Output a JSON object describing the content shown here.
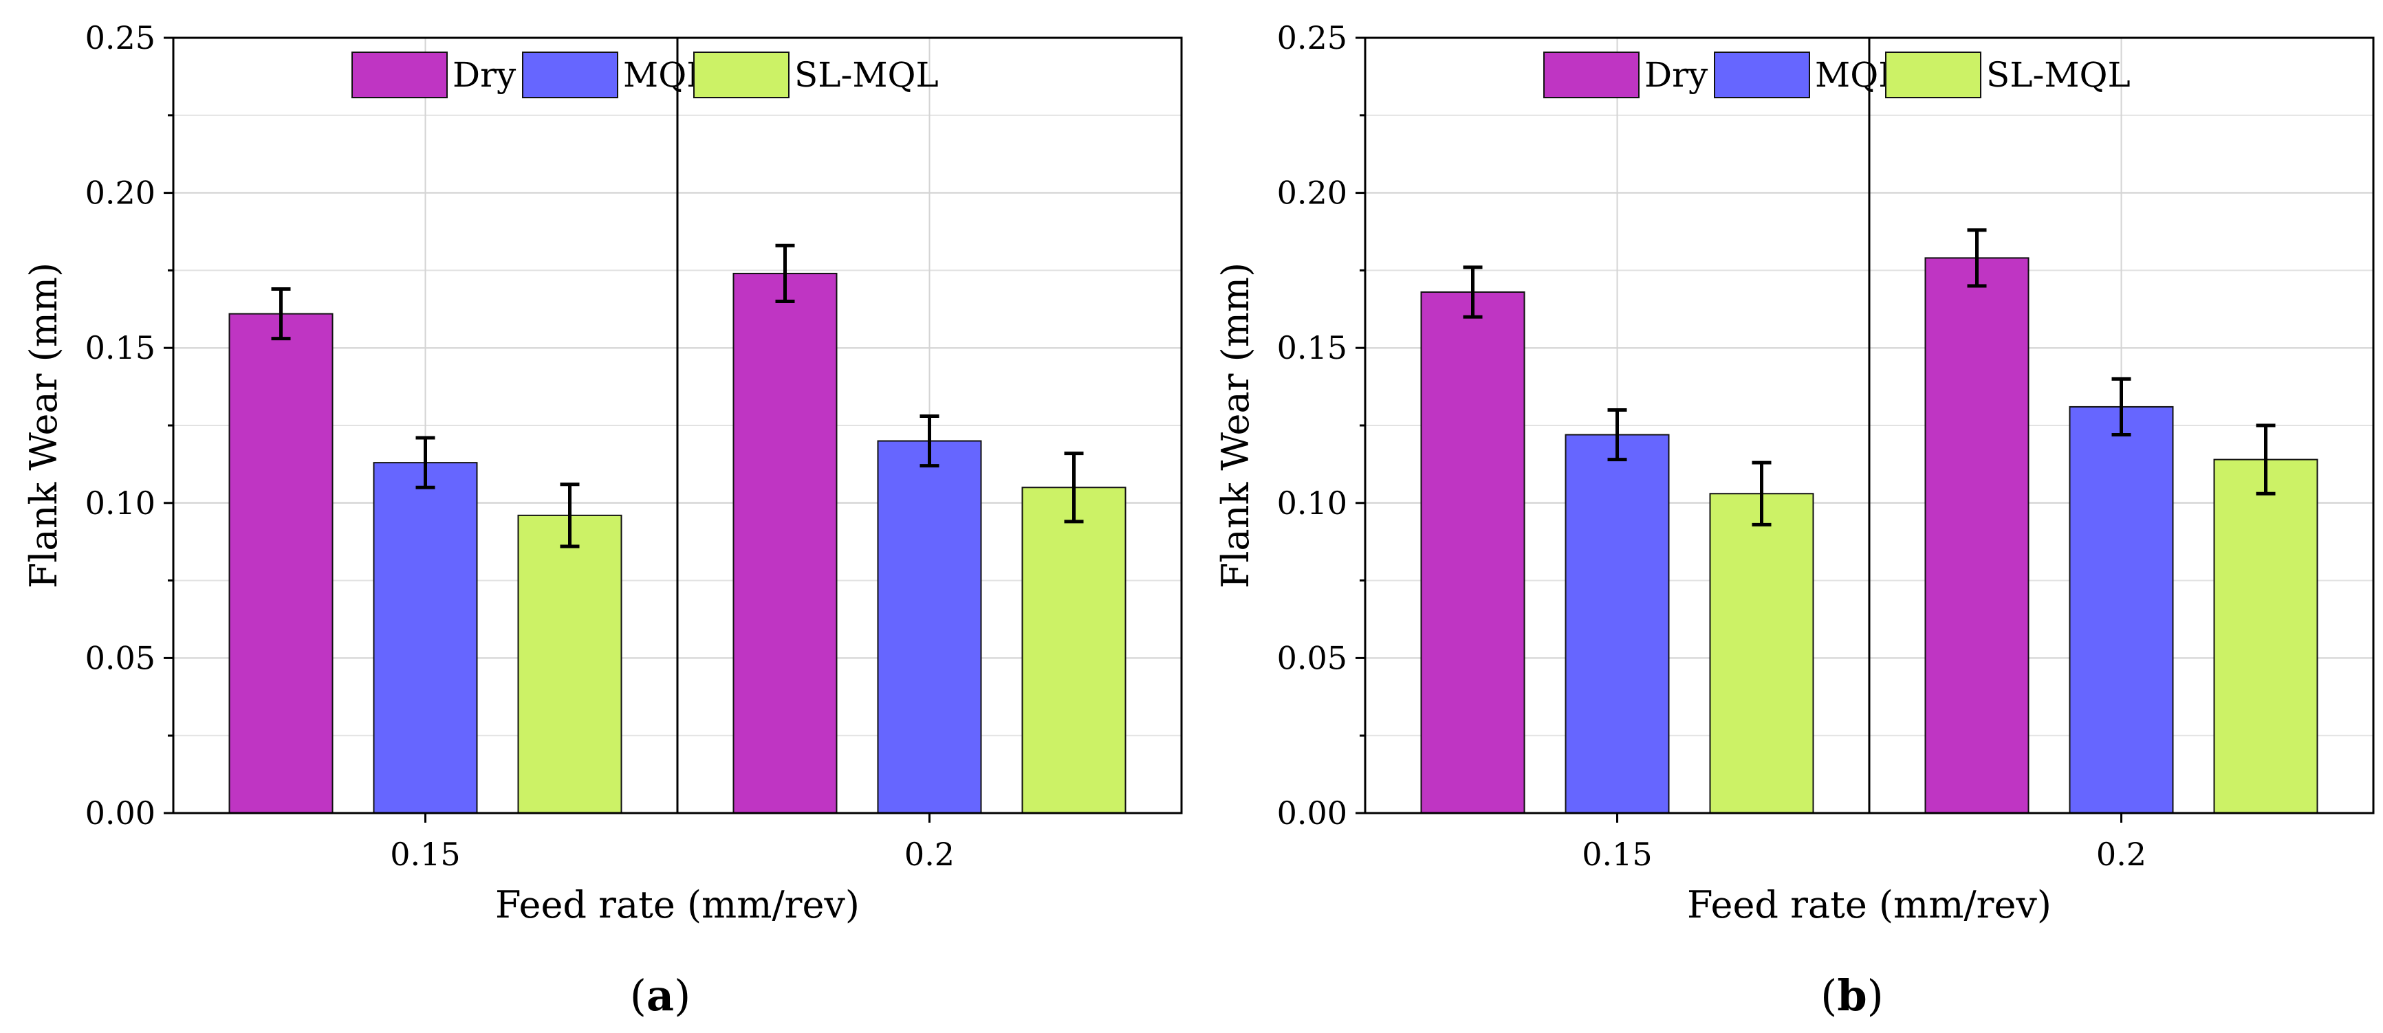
{
  "figure": {
    "panels": [
      "a",
      "b"
    ]
  },
  "chart_data": [
    {
      "type": "bar",
      "panel_label": "a",
      "panel_label_display": [
        "(",
        "a",
        ")"
      ],
      "title": "",
      "xlabel": "Feed rate (mm/rev)",
      "ylabel": "Flank Wear (mm)",
      "categories": [
        "0.15",
        "0.2"
      ],
      "ylim": [
        0,
        0.25
      ],
      "yticks": [
        "0.00",
        "0.05",
        "0.10",
        "0.15",
        "0.20",
        "0.25"
      ],
      "grid": true,
      "legend_position": "top-center",
      "series": [
        {
          "name": "Dry",
          "color": "#bf35c3",
          "values": [
            0.161,
            0.174
          ],
          "errors": [
            0.008,
            0.009
          ]
        },
        {
          "name": "MQL",
          "color": "#6666ff",
          "values": [
            0.113,
            0.12
          ],
          "errors": [
            0.008,
            0.008
          ]
        },
        {
          "name": "SL-MQL",
          "color": "#ccf266",
          "values": [
            0.096,
            0.105
          ],
          "errors": [
            0.01,
            0.011
          ]
        }
      ]
    },
    {
      "type": "bar",
      "panel_label": "b",
      "panel_label_display": [
        "(",
        "b",
        ")"
      ],
      "title": "",
      "xlabel": "Feed rate (mm/rev)",
      "ylabel": "Flank Wear (mm)",
      "categories": [
        "0.15",
        "0.2"
      ],
      "ylim": [
        0,
        0.25
      ],
      "yticks": [
        "0.00",
        "0.05",
        "0.10",
        "0.15",
        "0.20",
        "0.25"
      ],
      "grid": true,
      "legend_position": "top-center",
      "series": [
        {
          "name": "Dry",
          "color": "#bf35c3",
          "values": [
            0.168,
            0.179
          ],
          "errors": [
            0.008,
            0.009
          ]
        },
        {
          "name": "MQL",
          "color": "#6666ff",
          "values": [
            0.122,
            0.131
          ],
          "errors": [
            0.008,
            0.009
          ]
        },
        {
          "name": "SL-MQL",
          "color": "#ccf266",
          "values": [
            0.103,
            0.114
          ],
          "errors": [
            0.01,
            0.011
          ]
        }
      ]
    }
  ]
}
